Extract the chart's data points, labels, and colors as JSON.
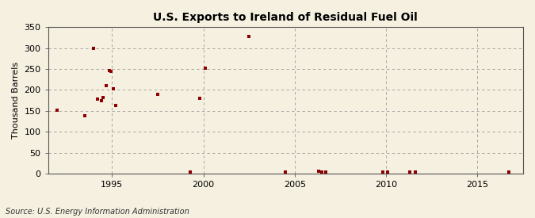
{
  "title": "U.S. Exports to Ireland of Residual Fuel Oil",
  "ylabel": "Thousand Barrels",
  "source": "Source: U.S. Energy Information Administration",
  "background_color": "#f5f0e0",
  "plot_background_color": "#f5f0e0",
  "marker_color": "#8b0000",
  "marker_size": 3.5,
  "xlim": [
    1991.5,
    2017.5
  ],
  "ylim": [
    0,
    350
  ],
  "yticks": [
    0,
    50,
    100,
    150,
    200,
    250,
    300,
    350
  ],
  "xticks": [
    1995,
    2000,
    2005,
    2010,
    2015
  ],
  "data_x": [
    1992.0,
    1993.5,
    1994.0,
    1994.2,
    1994.4,
    1994.5,
    1994.7,
    1994.85,
    1994.95,
    1995.05,
    1995.2,
    1997.5,
    1999.3,
    1999.8,
    2000.1,
    2002.5,
    2004.5,
    2006.3,
    2006.5,
    2006.7,
    2009.8,
    2010.1,
    2011.3,
    2011.6,
    2016.7
  ],
  "data_y": [
    152,
    139,
    299,
    178,
    175,
    181,
    210,
    246,
    244,
    203,
    163,
    190,
    4,
    180,
    253,
    328,
    4,
    5,
    4,
    3,
    3,
    3,
    4,
    4,
    4
  ]
}
